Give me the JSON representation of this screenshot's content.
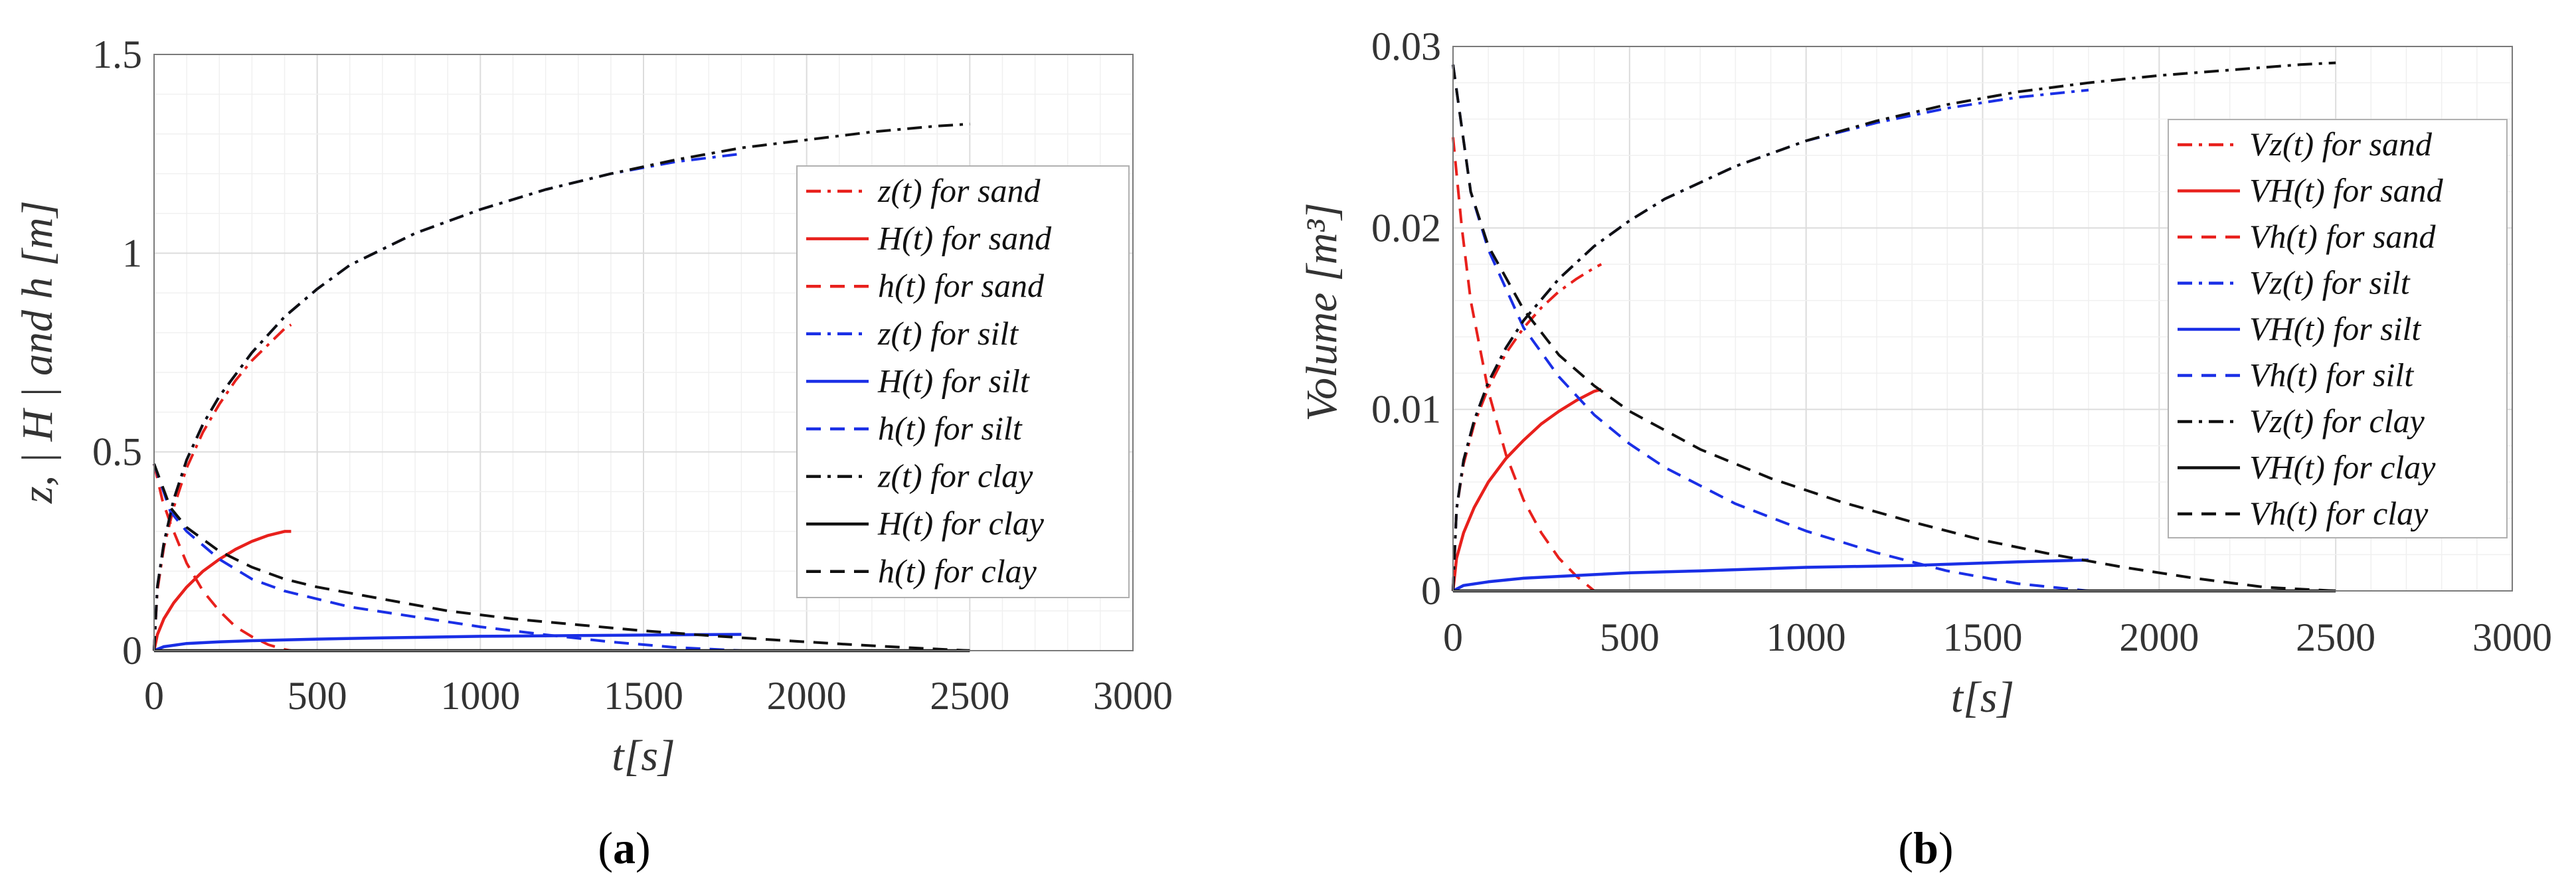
{
  "chart_data": [
    {
      "type": "line",
      "panel_label": "a",
      "xlabel": "t[s]",
      "ylabel": "z, | H | and h [m]",
      "xlim": [
        0,
        3000
      ],
      "ylim": [
        0,
        1.5
      ],
      "xticks": [
        "0",
        "500",
        "1000",
        "1500",
        "2000",
        "2500",
        "3000"
      ],
      "yticks": [
        "0",
        "0.5",
        "1",
        "1.5"
      ],
      "grid": true,
      "legend_position": "right",
      "series": [
        {
          "name": "z(t) for sand",
          "color": "#e8201c",
          "dash": "dashdot",
          "x": [
            0,
            10,
            30,
            60,
            100,
            150,
            200,
            250,
            300,
            350,
            400,
            420
          ],
          "y": [
            0,
            0.15,
            0.26,
            0.36,
            0.46,
            0.55,
            0.62,
            0.68,
            0.73,
            0.77,
            0.81,
            0.82
          ]
        },
        {
          "name": "H(t) for sand",
          "color": "#e8201c",
          "dash": "solid",
          "x": [
            0,
            10,
            30,
            60,
            100,
            150,
            200,
            250,
            300,
            350,
            400,
            420
          ],
          "y": [
            0,
            0.04,
            0.08,
            0.12,
            0.16,
            0.2,
            0.23,
            0.255,
            0.275,
            0.29,
            0.3,
            0.3
          ]
        },
        {
          "name": "h(t) for sand",
          "color": "#e8201c",
          "dash": "dash",
          "x": [
            0,
            25,
            50,
            100,
            150,
            200,
            250,
            300,
            350,
            400,
            420
          ],
          "y": [
            0.47,
            0.38,
            0.32,
            0.22,
            0.15,
            0.1,
            0.06,
            0.035,
            0.015,
            0.003,
            0
          ]
        },
        {
          "name": "z(t) for silt",
          "color": "#1a2fe6",
          "dash": "dashdot",
          "x": [
            0,
            10,
            30,
            60,
            100,
            150,
            200,
            300,
            400,
            500,
            600,
            800,
            1000,
            1200,
            1400,
            1600,
            1800
          ],
          "y": [
            0,
            0.16,
            0.27,
            0.38,
            0.48,
            0.57,
            0.64,
            0.75,
            0.84,
            0.91,
            0.97,
            1.05,
            1.11,
            1.16,
            1.2,
            1.23,
            1.25
          ]
        },
        {
          "name": "H(t) for silt",
          "color": "#1a2fe6",
          "dash": "solid",
          "x": [
            0,
            30,
            100,
            200,
            300,
            500,
            700,
            1000,
            1300,
            1600,
            1800
          ],
          "y": [
            0,
            0.01,
            0.018,
            0.022,
            0.025,
            0.029,
            0.032,
            0.036,
            0.038,
            0.04,
            0.041
          ]
        },
        {
          "name": "h(t) for silt",
          "color": "#1a2fe6",
          "dash": "dash",
          "x": [
            0,
            50,
            100,
            200,
            300,
            400,
            500,
            600,
            800,
            1000,
            1200,
            1400,
            1600,
            1800
          ],
          "y": [
            0.47,
            0.35,
            0.3,
            0.23,
            0.18,
            0.15,
            0.13,
            0.11,
            0.085,
            0.06,
            0.04,
            0.022,
            0.008,
            0
          ]
        },
        {
          "name": "z(t) for clay",
          "color": "#111111",
          "dash": "dashdot",
          "x": [
            0,
            10,
            30,
            60,
            100,
            150,
            200,
            300,
            400,
            500,
            600,
            800,
            1000,
            1200,
            1400,
            1600,
            1800,
            2000,
            2200,
            2400,
            2500
          ],
          "y": [
            0,
            0.16,
            0.27,
            0.38,
            0.48,
            0.57,
            0.64,
            0.75,
            0.84,
            0.91,
            0.97,
            1.05,
            1.11,
            1.16,
            1.2,
            1.235,
            1.265,
            1.285,
            1.305,
            1.32,
            1.325
          ]
        },
        {
          "name": "H(t) for clay",
          "color": "#111111",
          "dash": "solid",
          "x": [
            0,
            2500
          ],
          "y": [
            0,
            0
          ]
        },
        {
          "name": "h(t) for clay",
          "color": "#111111",
          "dash": "dash",
          "x": [
            0,
            50,
            100,
            200,
            300,
            400,
            500,
            700,
            900,
            1100,
            1300,
            1500,
            1700,
            1900,
            2100,
            2300,
            2500
          ],
          "y": [
            0.47,
            0.36,
            0.31,
            0.25,
            0.21,
            0.18,
            0.16,
            0.13,
            0.1,
            0.08,
            0.065,
            0.05,
            0.038,
            0.027,
            0.017,
            0.008,
            0
          ]
        }
      ]
    },
    {
      "type": "line",
      "panel_label": "b",
      "xlabel": "t[s]",
      "ylabel": "Volume [m³]",
      "xlim": [
        0,
        3000
      ],
      "ylim": [
        0,
        0.03
      ],
      "xticks": [
        "0",
        "500",
        "1000",
        "1500",
        "2000",
        "2500",
        "3000"
      ],
      "yticks": [
        "0",
        "0.01",
        "0.02",
        "0.03"
      ],
      "grid": true,
      "legend_position": "right",
      "series": [
        {
          "name": "Vz(t) for sand",
          "color": "#e8201c",
          "dash": "dashdot",
          "x": [
            0,
            10,
            30,
            60,
            100,
            150,
            200,
            250,
            300,
            350,
            400,
            420
          ],
          "y": [
            0,
            0.0045,
            0.007,
            0.0092,
            0.0112,
            0.0131,
            0.0145,
            0.0156,
            0.0165,
            0.0172,
            0.0178,
            0.018
          ]
        },
        {
          "name": "VH(t) for sand",
          "color": "#e8201c",
          "dash": "solid",
          "x": [
            0,
            10,
            30,
            60,
            100,
            150,
            200,
            250,
            300,
            350,
            400,
            420
          ],
          "y": [
            0,
            0.0018,
            0.0032,
            0.0046,
            0.006,
            0.0073,
            0.0083,
            0.0092,
            0.0099,
            0.0105,
            0.011,
            0.0111
          ]
        },
        {
          "name": "Vh(t) for sand",
          "color": "#e8201c",
          "dash": "dash",
          "x": [
            0,
            25,
            50,
            100,
            150,
            200,
            250,
            300,
            350,
            400
          ],
          "y": [
            0.025,
            0.02,
            0.016,
            0.011,
            0.0075,
            0.005,
            0.0032,
            0.0018,
            0.0008,
            0
          ]
        },
        {
          "name": "Vz(t) for silt",
          "color": "#1a2fe6",
          "dash": "dashdot",
          "x": [
            0,
            10,
            30,
            60,
            100,
            150,
            200,
            300,
            400,
            500,
            600,
            800,
            1000,
            1200,
            1400,
            1600,
            1800
          ],
          "y": [
            0,
            0.0045,
            0.0072,
            0.0094,
            0.0115,
            0.0134,
            0.0149,
            0.0172,
            0.019,
            0.0204,
            0.0216,
            0.0234,
            0.0248,
            0.0258,
            0.0266,
            0.0272,
            0.0276
          ]
        },
        {
          "name": "VH(t) for silt",
          "color": "#1a2fe6",
          "dash": "solid",
          "x": [
            0,
            30,
            100,
            200,
            300,
            500,
            700,
            1000,
            1300,
            1600,
            1800
          ],
          "y": [
            0,
            0.0003,
            0.0005,
            0.0007,
            0.0008,
            0.001,
            0.0011,
            0.0013,
            0.0014,
            0.0016,
            0.0017
          ]
        },
        {
          "name": "Vh(t) for silt",
          "color": "#1a2fe6",
          "dash": "dash",
          "x": [
            0,
            50,
            100,
            200,
            300,
            400,
            500,
            600,
            800,
            1000,
            1200,
            1400,
            1600,
            1800
          ],
          "y": [
            0.029,
            0.022,
            0.0188,
            0.0145,
            0.0118,
            0.0097,
            0.0081,
            0.0068,
            0.0048,
            0.0033,
            0.0021,
            0.0011,
            0.0004,
            0
          ]
        },
        {
          "name": "Vz(t) for clay",
          "color": "#111111",
          "dash": "dashdot",
          "x": [
            0,
            10,
            30,
            60,
            100,
            150,
            200,
            300,
            400,
            500,
            600,
            800,
            1000,
            1200,
            1400,
            1600,
            1800,
            2000,
            2200,
            2400,
            2500
          ],
          "y": [
            0,
            0.0045,
            0.0072,
            0.0094,
            0.0115,
            0.0134,
            0.0149,
            0.0172,
            0.019,
            0.0204,
            0.0216,
            0.0234,
            0.0248,
            0.0259,
            0.0268,
            0.0275,
            0.028,
            0.0284,
            0.0287,
            0.029,
            0.0291
          ]
        },
        {
          "name": "VH(t) for clay",
          "color": "#111111",
          "dash": "solid",
          "x": [
            0,
            2500
          ],
          "y": [
            0,
            0
          ]
        },
        {
          "name": "Vh(t) for clay",
          "color": "#111111",
          "dash": "dash",
          "x": [
            0,
            50,
            100,
            200,
            300,
            400,
            500,
            700,
            900,
            1100,
            1300,
            1500,
            1700,
            1900,
            2100,
            2300,
            2500
          ],
          "y": [
            0.029,
            0.022,
            0.019,
            0.0155,
            0.013,
            0.0113,
            0.0099,
            0.0078,
            0.0062,
            0.0049,
            0.0038,
            0.0028,
            0.002,
            0.0013,
            0.0007,
            0.0002,
            0
          ]
        }
      ]
    }
  ]
}
